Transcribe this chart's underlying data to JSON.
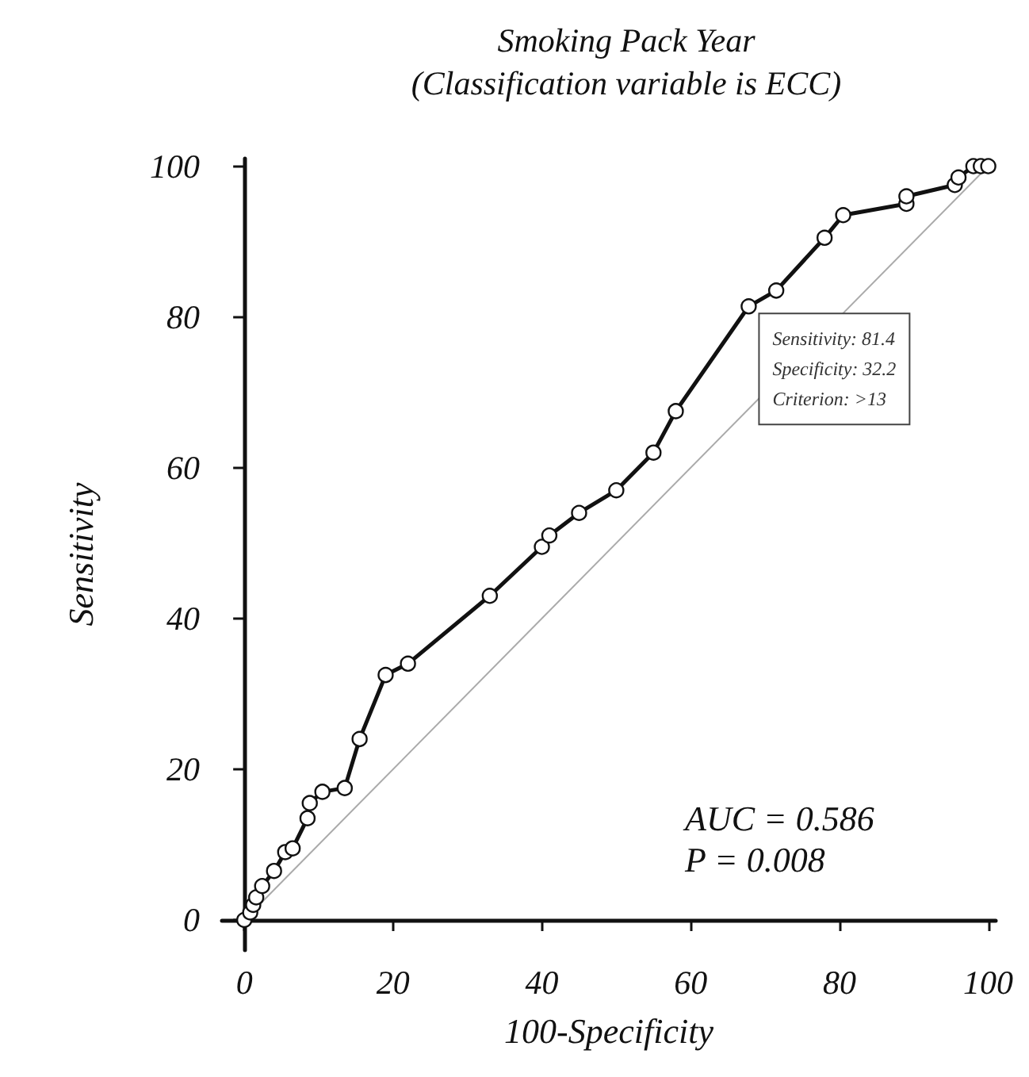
{
  "chart_data": {
    "type": "line",
    "title": "Smoking Pack Year",
    "subtitle": "(Classification variable is ECC)",
    "xlabel": "100-Specificity",
    "ylabel": "Sensitivity",
    "xlim": [
      -3,
      101
    ],
    "ylim": [
      -4,
      101
    ],
    "xticks": [
      0,
      20,
      40,
      60,
      80,
      100
    ],
    "yticks": [
      0,
      20,
      40,
      60,
      80,
      100
    ],
    "grid": false,
    "marker": "circle",
    "line_style": "solid",
    "series": [
      {
        "color": "#111111",
        "x": [
          0,
          0.8,
          1.2,
          1.6,
          2.4,
          4,
          5.5,
          6.5,
          8.5,
          8.8,
          10.5,
          13.5,
          15.5,
          19,
          22,
          33,
          40,
          41,
          45,
          50,
          55,
          58,
          67.8,
          71.5,
          78,
          80.5,
          89,
          89,
          95.5,
          96,
          98,
          99,
          100
        ],
        "values": [
          0,
          1,
          2,
          3,
          4.5,
          6.5,
          9,
          9.5,
          13.5,
          15.5,
          17,
          17.5,
          24,
          32.5,
          34,
          43,
          49.5,
          51,
          54,
          57,
          62,
          67.5,
          81.4,
          83.5,
          90.5,
          93.5,
          95,
          96,
          97.5,
          98.5,
          100,
          100,
          100
        ]
      },
      {
        "color": "#aaaaaa",
        "type": "line",
        "marker": "none",
        "x": [
          0,
          100
        ],
        "values": [
          0,
          100
        ]
      }
    ],
    "annotations": [
      {
        "text": "Sensitivity: 81.4\nSpecificity: 32.2\nCriterion: >13",
        "x": 67.8,
        "y": 81.4
      },
      "AUC = 0.586",
      "P = 0.008"
    ]
  }
}
